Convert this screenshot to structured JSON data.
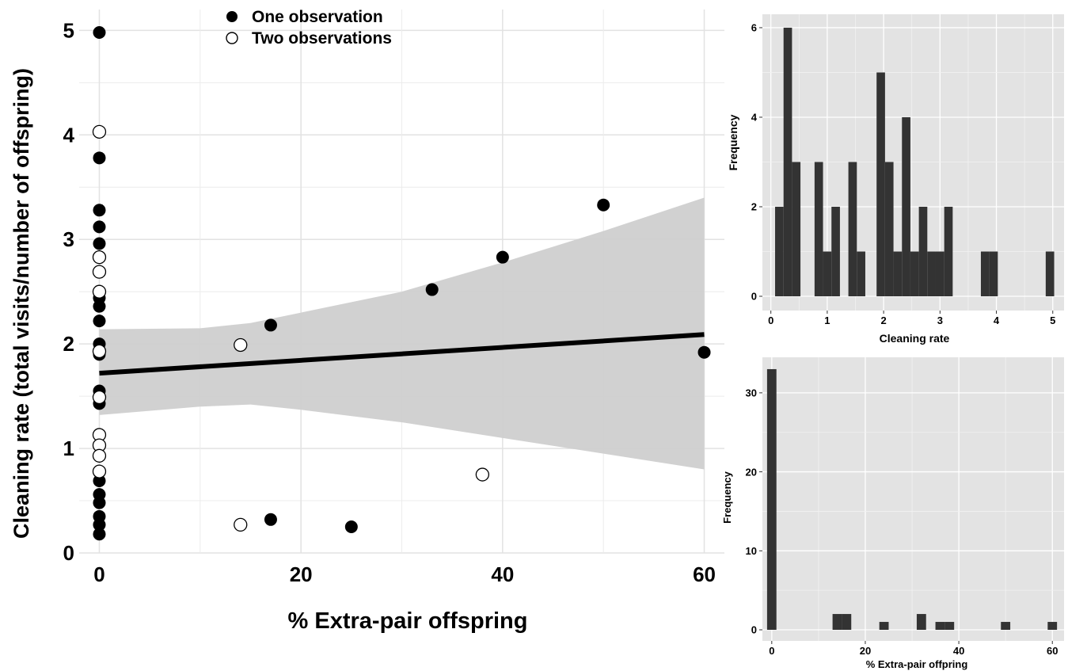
{
  "chart_data": [
    {
      "type": "scatter",
      "title": "",
      "xlabel": "% Extra-pair offspring",
      "ylabel": "Cleaning rate (total visits/number of offspring)",
      "xlim": [
        -2,
        62
      ],
      "ylim": [
        0,
        5.2
      ],
      "x_ticks": [
        0,
        20,
        40,
        60
      ],
      "y_ticks": [
        0,
        1,
        2,
        3,
        4,
        5
      ],
      "grid": true,
      "legend_position": "top-left",
      "series": [
        {
          "name": "One observation",
          "marker": "filled",
          "points": [
            {
              "x": 0,
              "y": 4.98
            },
            {
              "x": 0,
              "y": 3.78
            },
            {
              "x": 0,
              "y": 3.28
            },
            {
              "x": 0,
              "y": 3.12
            },
            {
              "x": 0,
              "y": 2.96
            },
            {
              "x": 0,
              "y": 2.44
            },
            {
              "x": 0,
              "y": 2.36
            },
            {
              "x": 0,
              "y": 2.22
            },
            {
              "x": 0,
              "y": 2.0
            },
            {
              "x": 0,
              "y": 1.9
            },
            {
              "x": 0,
              "y": 1.55
            },
            {
              "x": 0,
              "y": 1.43
            },
            {
              "x": 0,
              "y": 0.69
            },
            {
              "x": 0,
              "y": 0.56
            },
            {
              "x": 0,
              "y": 0.48
            },
            {
              "x": 0,
              "y": 0.35
            },
            {
              "x": 0,
              "y": 0.27
            },
            {
              "x": 0,
              "y": 0.18
            },
            {
              "x": 17,
              "y": 2.18
            },
            {
              "x": 17,
              "y": 0.32
            },
            {
              "x": 25,
              "y": 0.25
            },
            {
              "x": 33,
              "y": 2.52
            },
            {
              "x": 40,
              "y": 2.83
            },
            {
              "x": 50,
              "y": 3.33
            },
            {
              "x": 60,
              "y": 1.92
            }
          ]
        },
        {
          "name": "Two observations",
          "marker": "open",
          "points": [
            {
              "x": 0,
              "y": 4.03
            },
            {
              "x": 0,
              "y": 2.83
            },
            {
              "x": 0,
              "y": 2.69
            },
            {
              "x": 0,
              "y": 2.5
            },
            {
              "x": 0,
              "y": 1.93
            },
            {
              "x": 0,
              "y": 1.49
            },
            {
              "x": 0,
              "y": 1.13
            },
            {
              "x": 0,
              "y": 1.03
            },
            {
              "x": 0,
              "y": 0.93
            },
            {
              "x": 0,
              "y": 0.78
            },
            {
              "x": 14,
              "y": 1.99
            },
            {
              "x": 14,
              "y": 0.27
            },
            {
              "x": 38,
              "y": 0.75
            }
          ]
        }
      ],
      "regression": {
        "line": [
          {
            "x": 0,
            "y": 1.72
          },
          {
            "x": 60,
            "y": 2.09
          }
        ],
        "ci_upper": [
          {
            "x": 0,
            "y": 2.14
          },
          {
            "x": 10,
            "y": 2.15
          },
          {
            "x": 15,
            "y": 2.2
          },
          {
            "x": 20,
            "y": 2.3
          },
          {
            "x": 30,
            "y": 2.5
          },
          {
            "x": 40,
            "y": 2.78
          },
          {
            "x": 50,
            "y": 3.08
          },
          {
            "x": 60,
            "y": 3.4
          }
        ],
        "ci_lower": [
          {
            "x": 0,
            "y": 1.32
          },
          {
            "x": 10,
            "y": 1.4
          },
          {
            "x": 15,
            "y": 1.42
          },
          {
            "x": 20,
            "y": 1.37
          },
          {
            "x": 30,
            "y": 1.25
          },
          {
            "x": 40,
            "y": 1.1
          },
          {
            "x": 50,
            "y": 0.95
          },
          {
            "x": 60,
            "y": 0.8
          }
        ]
      }
    },
    {
      "type": "bar",
      "subtype": "histogram",
      "title": "",
      "xlabel": "Cleaning rate",
      "ylabel": "Frequency",
      "xlim": [
        -0.15,
        5.2
      ],
      "ylim": [
        0,
        6.3
      ],
      "x_ticks": [
        0,
        1,
        2,
        3,
        4,
        5
      ],
      "y_ticks": [
        0,
        2,
        4,
        6
      ],
      "grid": true,
      "bin_width": 0.15,
      "bins": [
        {
          "x": 0.15,
          "count": 2
        },
        {
          "x": 0.3,
          "count": 6
        },
        {
          "x": 0.45,
          "count": 3
        },
        {
          "x": 0.85,
          "count": 3
        },
        {
          "x": 1.0,
          "count": 1
        },
        {
          "x": 1.15,
          "count": 2
        },
        {
          "x": 1.45,
          "count": 3
        },
        {
          "x": 1.6,
          "count": 1
        },
        {
          "x": 1.95,
          "count": 5
        },
        {
          "x": 2.1,
          "count": 3
        },
        {
          "x": 2.25,
          "count": 1
        },
        {
          "x": 2.4,
          "count": 4
        },
        {
          "x": 2.55,
          "count": 1
        },
        {
          "x": 2.7,
          "count": 2
        },
        {
          "x": 2.85,
          "count": 1
        },
        {
          "x": 3.0,
          "count": 1
        },
        {
          "x": 3.15,
          "count": 2
        },
        {
          "x": 3.8,
          "count": 1
        },
        {
          "x": 3.95,
          "count": 1
        },
        {
          "x": 4.95,
          "count": 1
        }
      ]
    },
    {
      "type": "bar",
      "subtype": "histogram",
      "title": "",
      "xlabel": "% Extra-pair offpring",
      "ylabel": "Frequency",
      "xlim": [
        -2,
        62.5
      ],
      "ylim": [
        0,
        34.5
      ],
      "x_ticks": [
        0,
        20,
        40,
        60
      ],
      "y_ticks": [
        0,
        10,
        20,
        30
      ],
      "grid": true,
      "bin_width": 2,
      "bins": [
        {
          "x": 0,
          "count": 33
        },
        {
          "x": 14,
          "count": 2
        },
        {
          "x": 16,
          "count": 2
        },
        {
          "x": 24,
          "count": 1
        },
        {
          "x": 32,
          "count": 2
        },
        {
          "x": 36,
          "count": 1
        },
        {
          "x": 38,
          "count": 1
        },
        {
          "x": 50,
          "count": 1
        },
        {
          "x": 60,
          "count": 1
        }
      ]
    }
  ]
}
